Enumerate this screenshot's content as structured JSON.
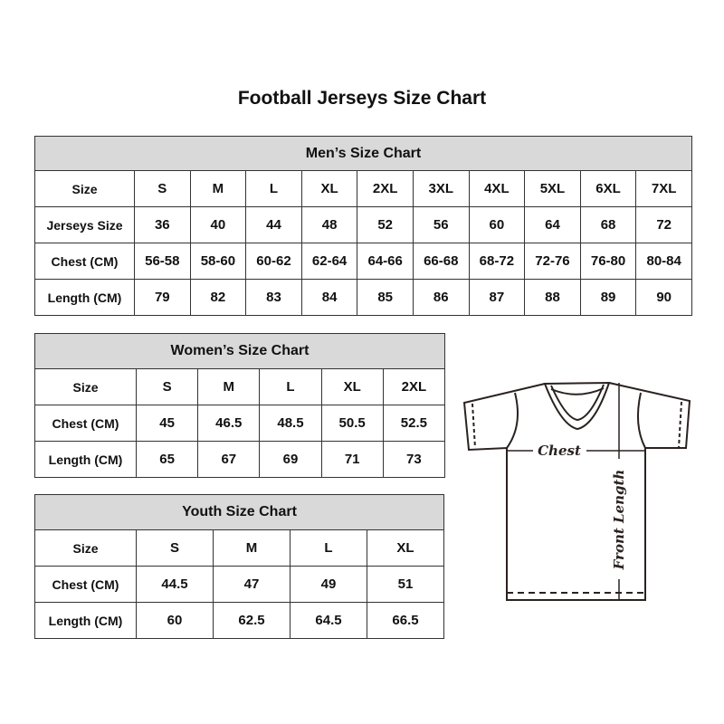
{
  "title": "Football Jerseys Size Chart",
  "men": {
    "title": "Men’s Size Chart",
    "rows": [
      {
        "label": "Size",
        "values": [
          "S",
          "M",
          "L",
          "XL",
          "2XL",
          "3XL",
          "4XL",
          "5XL",
          "6XL",
          "7XL"
        ]
      },
      {
        "label": "Jerseys Size",
        "values": [
          "36",
          "40",
          "44",
          "48",
          "52",
          "56",
          "60",
          "64",
          "68",
          "72"
        ]
      },
      {
        "label": "Chest (CM)",
        "values": [
          "56-58",
          "58-60",
          "60-62",
          "62-64",
          "64-66",
          "66-68",
          "68-72",
          "72-76",
          "76-80",
          "80-84"
        ]
      },
      {
        "label": "Length (CM)",
        "values": [
          "79",
          "82",
          "83",
          "84",
          "85",
          "86",
          "87",
          "88",
          "89",
          "90"
        ]
      }
    ]
  },
  "women": {
    "title": "Women’s Size Chart",
    "rows": [
      {
        "label": "Size",
        "values": [
          "S",
          "M",
          "L",
          "XL",
          "2XL"
        ]
      },
      {
        "label": "Chest (CM)",
        "values": [
          "45",
          "46.5",
          "48.5",
          "50.5",
          "52.5"
        ]
      },
      {
        "label": "Length (CM)",
        "values": [
          "65",
          "67",
          "69",
          "71",
          "73"
        ]
      }
    ]
  },
  "youth": {
    "title": "Youth Size Chart",
    "rows": [
      {
        "label": "Size",
        "values": [
          "S",
          "M",
          "L",
          "XL"
        ]
      },
      {
        "label": "Chest (CM)",
        "values": [
          "44.5",
          "47",
          "49",
          "51"
        ]
      },
      {
        "label": "Length (CM)",
        "values": [
          "60",
          "62.5",
          "64.5",
          "66.5"
        ]
      }
    ]
  },
  "diagram": {
    "chest_label": "Chest",
    "length_label": "Front Length"
  }
}
